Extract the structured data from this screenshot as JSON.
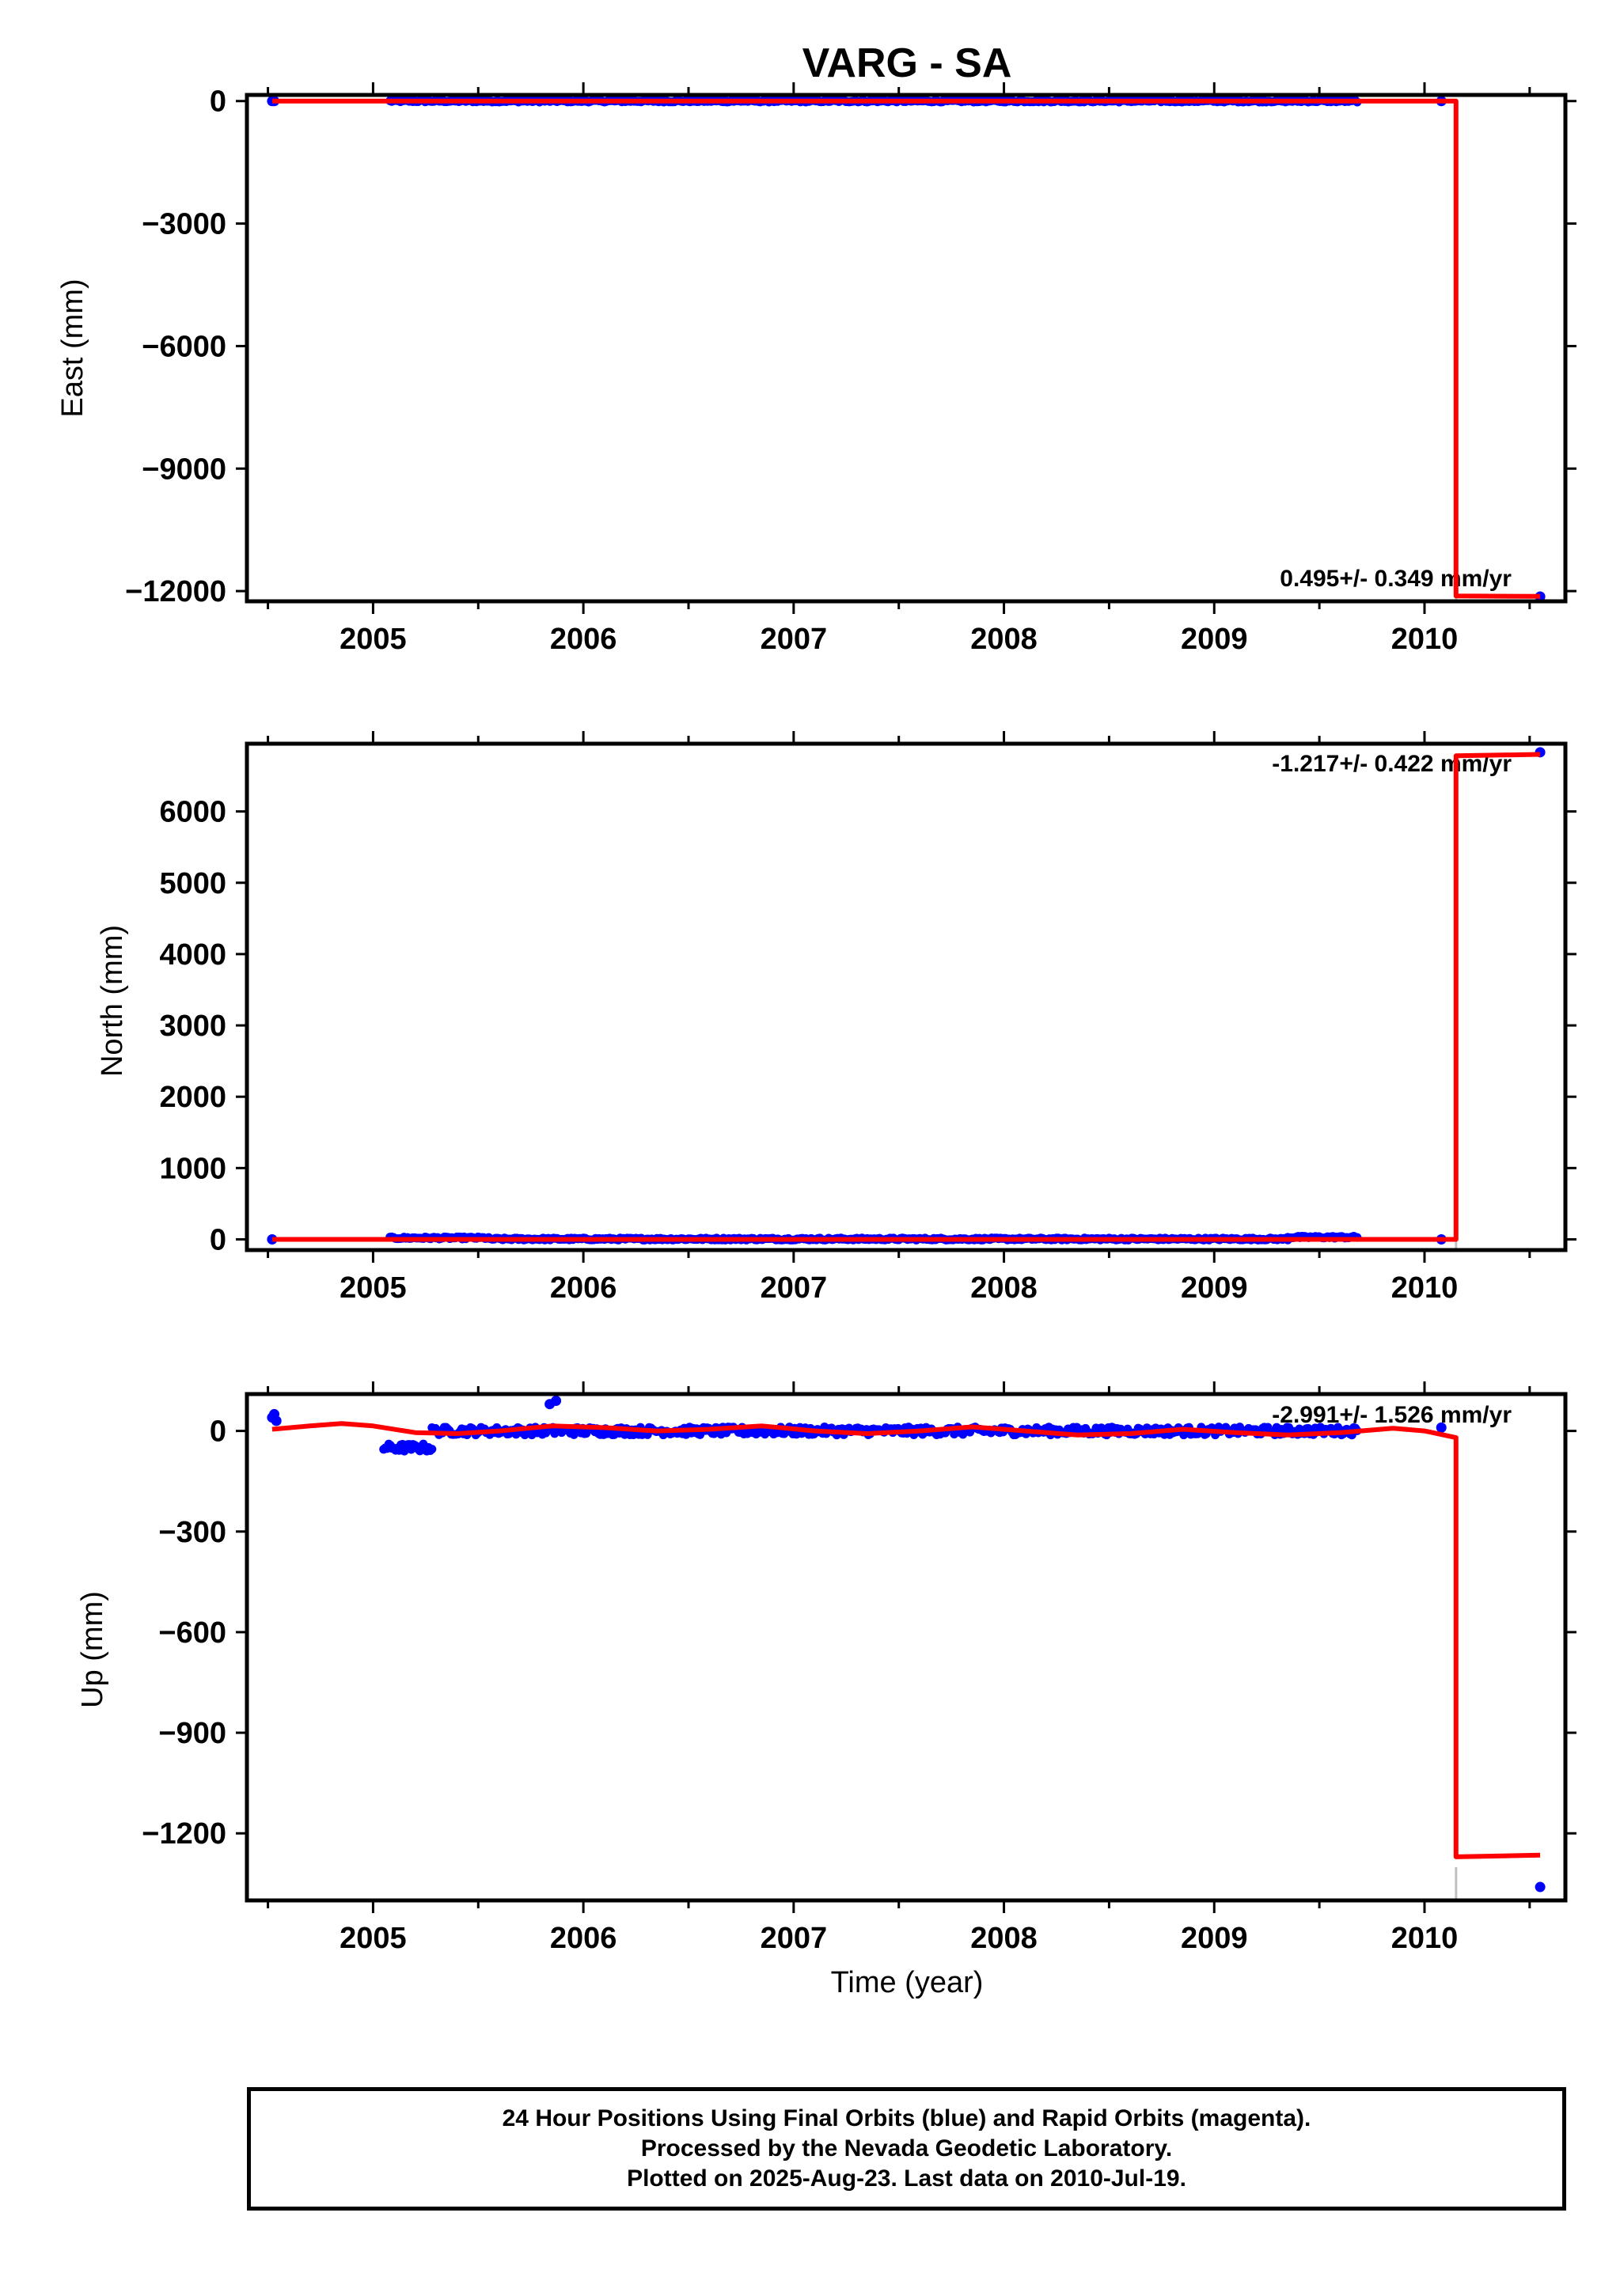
{
  "title": "VARG - SA",
  "colors": {
    "data": "#0000ff",
    "model": "#ff0000",
    "frame": "#000000",
    "offset_marker": "#c0c0c0"
  },
  "xaxis_label": "Time (year)",
  "footer": {
    "line1": "24 Hour Positions Using Final Orbits (blue) and Rapid Orbits (magenta).",
    "line2": "Processed by the Nevada Geodetic Laboratory.",
    "line3": "Plotted on 2025-Aug-23. Last data on 2010-Jul-19."
  },
  "chart_data": [
    {
      "type": "scatter",
      "name": "east",
      "ylabel": "East (mm)",
      "rate_label": "0.495+/- 0.349 mm/yr",
      "xlim": [
        2004.4,
        2010.67
      ],
      "ylim": [
        -12250,
        150
      ],
      "xticks": [
        2005,
        2006,
        2007,
        2008,
        2009,
        2010
      ],
      "xtick_labels": [
        "2005",
        "2006",
        "2007",
        "2008",
        "2009",
        "2010"
      ],
      "yticks": [
        0,
        -3000,
        -6000,
        -9000,
        -12000
      ],
      "ytick_labels": [
        "0",
        "−3000",
        "−6000",
        "−9000",
        "−12000"
      ],
      "observations": {
        "isolated": [
          [
            2004.52,
            0
          ],
          [
            2004.53,
            0
          ],
          [
            2010.08,
            0
          ],
          [
            2010.55,
            -12150
          ]
        ],
        "continuous": [
          [
            2005.08,
            2005.55,
            0
          ],
          [
            2005.55,
            2009.68,
            0
          ]
        ],
        "noise": 25
      },
      "model": [
        [
          2004.52,
          0
        ],
        [
          2010.15,
          0
        ],
        [
          2010.15,
          -12120
        ],
        [
          2010.55,
          -12130
        ]
      ],
      "offset_epochs": [
        2010.15
      ]
    },
    {
      "type": "scatter",
      "name": "north",
      "ylabel": "North (mm)",
      "rate_label": "-1.217+/- 0.422 mm/yr",
      "xlim": [
        2004.4,
        2010.67
      ],
      "ylim": [
        -150,
        6950
      ],
      "xticks": [
        2005,
        2006,
        2007,
        2008,
        2009,
        2010
      ],
      "xtick_labels": [
        "2005",
        "2006",
        "2007",
        "2008",
        "2009",
        "2010"
      ],
      "yticks": [
        0,
        1000,
        2000,
        3000,
        4000,
        5000,
        6000
      ],
      "ytick_labels": [
        "0",
        "1000",
        "2000",
        "3000",
        "4000",
        "5000",
        "6000"
      ],
      "observations": {
        "isolated": [
          [
            2004.52,
            0
          ],
          [
            2010.08,
            0
          ],
          [
            2010.55,
            6830
          ]
        ],
        "continuous": [
          [
            2005.08,
            2005.55,
            20
          ],
          [
            2005.55,
            2009.35,
            5
          ],
          [
            2009.35,
            2009.68,
            30
          ]
        ],
        "noise": 15
      },
      "model": [
        [
          2004.52,
          0
        ],
        [
          2010.15,
          0
        ],
        [
          2010.15,
          6780
        ],
        [
          2010.55,
          6800
        ]
      ],
      "offset_epochs": [
        2010.15
      ]
    },
    {
      "type": "scatter",
      "name": "up",
      "ylabel": "Up (mm)",
      "rate_label": "-2.991+/- 1.526 mm/yr",
      "xlim": [
        2004.4,
        2010.67
      ],
      "ylim": [
        -1400,
        110
      ],
      "xticks": [
        2005,
        2006,
        2007,
        2008,
        2009,
        2010
      ],
      "xtick_labels": [
        "2005",
        "2006",
        "2007",
        "2008",
        "2009",
        "2010"
      ],
      "yticks": [
        0,
        -300,
        -600,
        -900,
        -1200
      ],
      "ytick_labels": [
        "0",
        "−300",
        "−600",
        "−900",
        "−1200"
      ],
      "observations": {
        "isolated": [
          [
            2004.52,
            40
          ],
          [
            2004.53,
            50
          ],
          [
            2004.54,
            30
          ],
          [
            2005.84,
            80
          ],
          [
            2005.87,
            90
          ],
          [
            2010.08,
            10
          ],
          [
            2010.55,
            -1360
          ]
        ],
        "continuous": [
          [
            2005.05,
            2005.28,
            -50
          ],
          [
            2005.28,
            2009.68,
            0
          ]
        ],
        "noise": 12
      },
      "model": [
        [
          2004.52,
          5
        ],
        [
          2004.7,
          15
        ],
        [
          2004.85,
          22
        ],
        [
          2005.0,
          15
        ],
        [
          2005.2,
          -5
        ],
        [
          2005.4,
          -8
        ],
        [
          2005.6,
          0
        ],
        [
          2005.85,
          15
        ],
        [
          2006.1,
          10
        ],
        [
          2006.35,
          0
        ],
        [
          2006.6,
          5
        ],
        [
          2006.85,
          15
        ],
        [
          2007.1,
          0
        ],
        [
          2007.35,
          -8
        ],
        [
          2007.6,
          0
        ],
        [
          2007.85,
          12
        ],
        [
          2008.1,
          0
        ],
        [
          2008.35,
          -12
        ],
        [
          2008.6,
          -8
        ],
        [
          2008.85,
          5
        ],
        [
          2009.1,
          -5
        ],
        [
          2009.35,
          -12
        ],
        [
          2009.6,
          -5
        ],
        [
          2009.85,
          8
        ],
        [
          2010.0,
          0
        ],
        [
          2010.15,
          -20
        ],
        [
          2010.15,
          -1270
        ],
        [
          2010.55,
          -1265
        ]
      ],
      "offset_epochs": [
        2010.15
      ]
    }
  ]
}
